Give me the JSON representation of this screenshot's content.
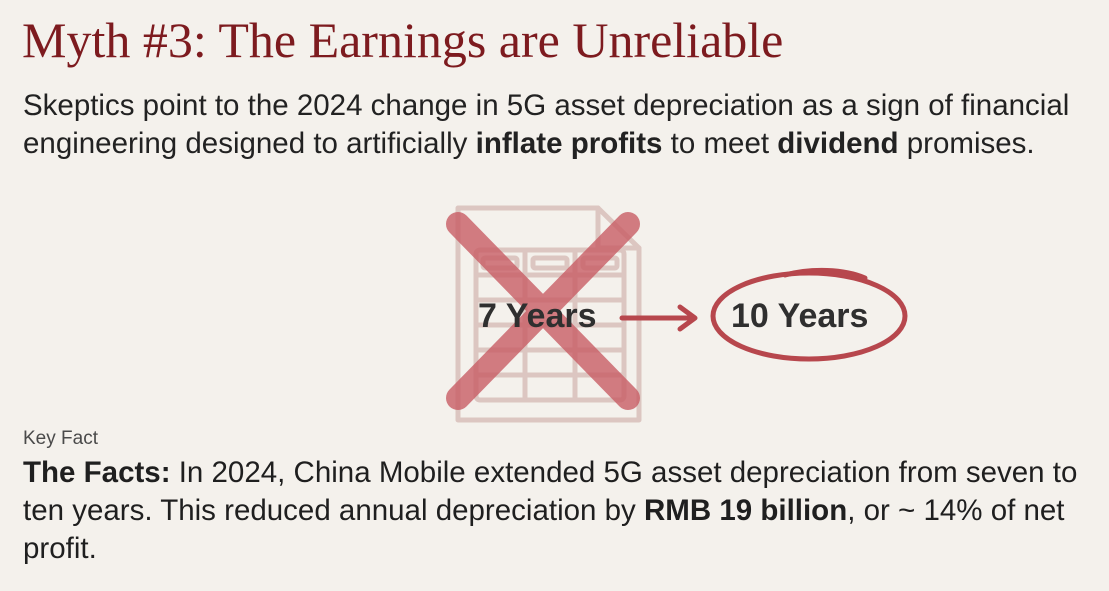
{
  "title": "Myth #3: The Earnings are Unreliable",
  "intro": {
    "prefix": "Skeptics point to the 2024 change in 5G asset depreciation as a sign of financial engineering designed to artificially ",
    "bold_1": "inflate profits",
    "middle": " to meet ",
    "bold_2": "dividend",
    "suffix": " promises."
  },
  "illustration": {
    "old_label": "7 Years",
    "new_label": "10 Years",
    "icons": [
      "document-icon",
      "cross-icon",
      "arrow-icon",
      "circle-icon"
    ],
    "colors": {
      "accent": "#b7474d",
      "document": "#dcc6c1",
      "text": "#2f2f2f"
    }
  },
  "key_fact": {
    "label": "Key Fact",
    "lead": "The Facts:",
    "text_1": " In 2024, China Mobile extended 5G asset depreciation from seven to ten years. This reduced annual depreciation by ",
    "bold": "RMB 19 billion",
    "text_2": ", or ~ 14% of net profit."
  },
  "colors": {
    "background": "#f4f1ec",
    "title": "#7d1b1f"
  }
}
